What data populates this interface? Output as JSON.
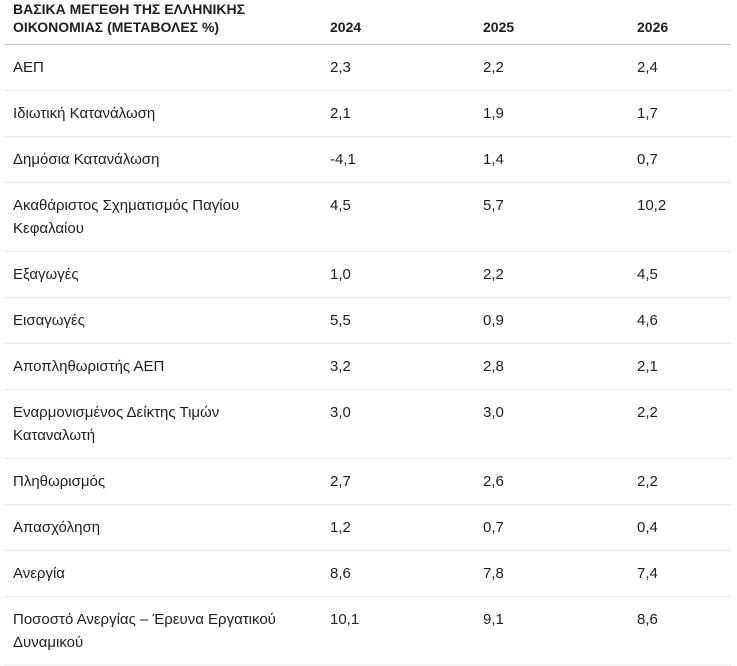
{
  "chart_data": {
    "type": "table",
    "title": "ΒΑΣΙΚΑ ΜΕΓΕΘΗ ΤΗΣ ΕΛΛΗΝΙΚΗΣ ΟΙΚΟΝΟΜΙΑΣ (ΜΕΤΑΒΟΛΕΣ %)",
    "columns": [
      "2024",
      "2025",
      "2026"
    ],
    "rows": [
      {
        "label": "ΑΕΠ",
        "values": [
          "2,3",
          "2,2",
          "2,4"
        ]
      },
      {
        "label": "Ιδιωτική Κατανάλωση",
        "values": [
          "2,1",
          "1,9",
          "1,7"
        ]
      },
      {
        "label": "Δημόσια Κατανάλωση",
        "values": [
          "-4,1",
          "1,4",
          "0,7"
        ]
      },
      {
        "label": "Ακαθάριστος Σχηματισμός Παγίου Κεφαλαίου",
        "values": [
          "4,5",
          "5,7",
          "10,2"
        ]
      },
      {
        "label": "Εξαγωγές",
        "values": [
          "1,0",
          "2,2",
          "4,5"
        ]
      },
      {
        "label": "Εισαγωγές",
        "values": [
          "5,5",
          "0,9",
          "4,6"
        ]
      },
      {
        "label": "Αποπληθωριστής ΑΕΠ",
        "values": [
          "3,2",
          "2,8",
          "2,1"
        ]
      },
      {
        "label": "Εναρμονισμένος Δείκτης Τιμών Καταναλωτή",
        "values": [
          "3,0",
          "3,0",
          "2,2"
        ]
      },
      {
        "label": "Πληθωρισμός",
        "values": [
          "2,7",
          "2,6",
          "2,2"
        ]
      },
      {
        "label": "Απασχόληση",
        "values": [
          "1,2",
          "0,7",
          "0,4"
        ]
      },
      {
        "label": "Ανεργία",
        "values": [
          "8,6",
          "7,8",
          "7,4"
        ]
      },
      {
        "label": "Ποσοστό Ανεργίας – Έρευνα Εργατικού Δυναμικού",
        "values": [
          "10,1",
          "9,1",
          "8,6"
        ]
      }
    ],
    "layout": {
      "legend": "none",
      "grid": "horizontal-row-dividers"
    },
    "colors": {
      "text": "#1f1f1f",
      "header_divider": "#c6c6c6",
      "row_divider": "#e9e9e9",
      "background": "#ffffff"
    }
  }
}
